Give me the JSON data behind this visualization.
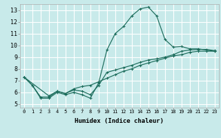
{
  "xlabel": "Humidex (Indice chaleur)",
  "bg_color": "#c8eaea",
  "grid_color": "#ffffff",
  "line_color": "#1a6b5a",
  "xlim": [
    -0.5,
    23.5
  ],
  "ylim": [
    4.7,
    13.5
  ],
  "yticks": [
    5,
    6,
    7,
    8,
    9,
    10,
    11,
    12,
    13
  ],
  "xticks": [
    0,
    1,
    2,
    3,
    4,
    5,
    6,
    7,
    8,
    9,
    10,
    11,
    12,
    13,
    14,
    15,
    16,
    17,
    18,
    19,
    20,
    21,
    22,
    23
  ],
  "line1_x": [
    0,
    1,
    2,
    3,
    4,
    5,
    6,
    7,
    8,
    9,
    10,
    11,
    12,
    13,
    14,
    15,
    16,
    17,
    18,
    19,
    20,
    21,
    23
  ],
  "line1_y": [
    7.3,
    6.6,
    5.5,
    5.5,
    6.0,
    5.8,
    6.0,
    5.8,
    5.5,
    6.8,
    9.6,
    11.0,
    11.6,
    12.5,
    13.1,
    13.25,
    12.5,
    10.5,
    9.85,
    9.9,
    9.7,
    9.7,
    9.5
  ],
  "line2_x": [
    0,
    1,
    2,
    3,
    4,
    5,
    6,
    7,
    8,
    9,
    10,
    11,
    12,
    13,
    14,
    15,
    16,
    17,
    18,
    19,
    20,
    21,
    22,
    23
  ],
  "line2_y": [
    7.3,
    6.6,
    5.6,
    5.6,
    6.1,
    5.9,
    6.2,
    6.1,
    5.8,
    6.6,
    7.7,
    7.9,
    8.1,
    8.3,
    8.55,
    8.75,
    8.85,
    9.0,
    9.2,
    9.5,
    9.6,
    9.65,
    9.65,
    9.55
  ],
  "line3_x": [
    0,
    3,
    4,
    5,
    6,
    7,
    8,
    9,
    10,
    11,
    12,
    13,
    14,
    15,
    16,
    17,
    18,
    19,
    20,
    21,
    22,
    23
  ],
  "line3_y": [
    7.3,
    5.7,
    6.1,
    5.9,
    6.3,
    6.5,
    6.6,
    6.9,
    7.2,
    7.5,
    7.8,
    8.0,
    8.3,
    8.5,
    8.7,
    8.9,
    9.1,
    9.2,
    9.4,
    9.5,
    9.5,
    9.5
  ]
}
